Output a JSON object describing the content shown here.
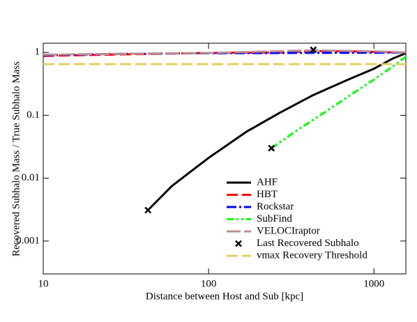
{
  "chart_data": {
    "type": "line",
    "xlabel": "Distance between Host and Sub [kpc]",
    "ylabel": "Recovered Subhalo Mass / True Subhalo Mass",
    "xscale": "log",
    "yscale": "log",
    "xlim": [
      10,
      1560
    ],
    "ylim": [
      0.0003,
      1.4
    ],
    "xticks": [
      10,
      100,
      1000
    ],
    "yticks": [
      0.001,
      0.01,
      0.1,
      1
    ],
    "legend": "lower right",
    "series": [
      {
        "name": "AHF",
        "color": "#000000",
        "style": "solid",
        "x": [
          43,
          60,
          100,
          170,
          270,
          430,
          700,
          1000,
          1300,
          1560
        ],
        "values": [
          0.0031,
          0.0075,
          0.021,
          0.055,
          0.11,
          0.21,
          0.37,
          0.55,
          0.8,
          0.97
        ]
      },
      {
        "name": "HBT",
        "color": "#ff0000",
        "style": "dash",
        "x": [
          10,
          30,
          100,
          300,
          430,
          900,
          1300,
          1560
        ],
        "values": [
          0.88,
          0.93,
          0.98,
          1.0,
          1.05,
          1.03,
          1.0,
          1.0
        ]
      },
      {
        "name": "Rockstar",
        "color": "#0000ff",
        "style": "dashdot",
        "x": [
          10,
          30,
          100,
          300,
          1000,
          1560
        ],
        "values": [
          0.9,
          0.95,
          0.97,
          0.98,
          0.99,
          1.0
        ]
      },
      {
        "name": "SubFind",
        "color": "#00ff00",
        "style": "dashdotdot",
        "x": [
          240,
          350,
          500,
          700,
          1000,
          1300,
          1560
        ],
        "values": [
          0.03,
          0.06,
          0.11,
          0.2,
          0.37,
          0.6,
          0.85
        ]
      },
      {
        "name": "VELOCIraptor",
        "color": "#bc8f8f",
        "style": "longdash",
        "x": [
          10,
          100,
          430,
          1000,
          1560
        ],
        "values": [
          0.92,
          0.98,
          1.08,
          1.04,
          1.0
        ]
      },
      {
        "name": "Last Recovered Subhalo",
        "color": "#000000",
        "style": "marker",
        "x": [
          43,
          240,
          430
        ],
        "values": [
          0.0031,
          0.03,
          1.1
        ]
      },
      {
        "name": "vmax Recovery Threshold",
        "color": "#e0d060",
        "style": "dash",
        "x": [
          10,
          1560
        ],
        "values": [
          0.65,
          0.65
        ]
      }
    ]
  }
}
